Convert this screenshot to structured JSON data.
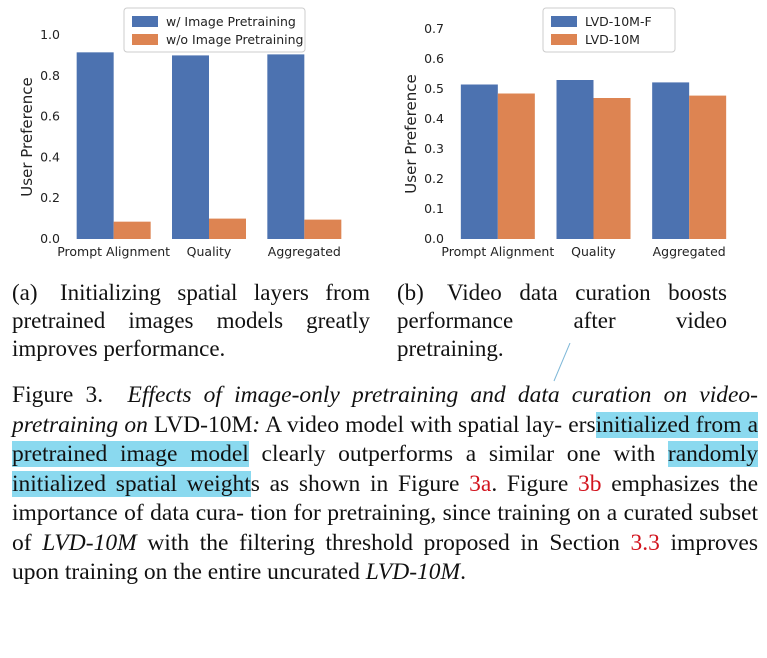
{
  "colors": {
    "blue": "#4c72b0",
    "orange": "#dd8452",
    "highlight": "#8ad9ef",
    "ref": "#d2141e"
  },
  "chart_data": [
    {
      "type": "bar",
      "categories": [
        "Prompt Alignment",
        "Quality",
        "Aggregated"
      ],
      "series": [
        {
          "name": "w/ Image Pretraining",
          "values": [
            0.915,
            0.9,
            0.905
          ],
          "color": "#4c72b0"
        },
        {
          "name": "w/o Image Pretraining",
          "values": [
            0.085,
            0.1,
            0.095
          ],
          "color": "#dd8452"
        }
      ],
      "ylabel": "User Preference",
      "ylim": [
        0,
        1.0
      ],
      "yticks": [
        "0.0",
        "0.2",
        "0.4",
        "0.6",
        "0.8",
        "1.0"
      ],
      "grid": false,
      "legend": "top-center"
    },
    {
      "type": "bar",
      "categories": [
        "Prompt Alignment",
        "Quality",
        "Aggregated"
      ],
      "series": [
        {
          "name": "LVD-10M-F",
          "values": [
            0.515,
            0.53,
            0.522
          ],
          "color": "#4c72b0"
        },
        {
          "name": "LVD-10M",
          "values": [
            0.485,
            0.47,
            0.478
          ],
          "color": "#dd8452"
        }
      ],
      "ylabel": "User Preference",
      "ylim": [
        0,
        0.7
      ],
      "yticks": [
        "0.0",
        "0.1",
        "0.2",
        "0.3",
        "0.4",
        "0.5",
        "0.6",
        "0.7"
      ],
      "grid": false,
      "legend": "top-center"
    }
  ],
  "subcaptions": {
    "a": {
      "label": "(a)",
      "text": "Initializing spatial layers from pretrained images models greatly improves performance."
    },
    "b": {
      "label": "(b)",
      "text": "Video data curation boosts performance after video pretraining."
    }
  },
  "caption": {
    "figure_label": "Figure 3.",
    "title_italic": "Effects of image-only pretraining and data curation on video-pretraining on",
    "title_dataset": "LVD-10M",
    "title_colon": ":",
    "s1": "A video model with spatial lay- ers",
    "hl1": "initialized from a pretrained image model",
    "s2": "clearly outperforms a similar one with",
    "hl2": "randomly initialized spatial weight",
    "s3": "s as shown in Figure",
    "ref1": "3a",
    "s4": ". Figure",
    "ref2": "3b",
    "s5": "emphasizes the importance of data cura- tion for pretraining, since training on a curated subset of",
    "it1": "LVD-10M",
    "s6": "with the filtering threshold proposed in Section",
    "ref3": "3.3",
    "s7": "improves upon training on the entire uncurated",
    "it2": "LVD-10M",
    "s8": "."
  }
}
